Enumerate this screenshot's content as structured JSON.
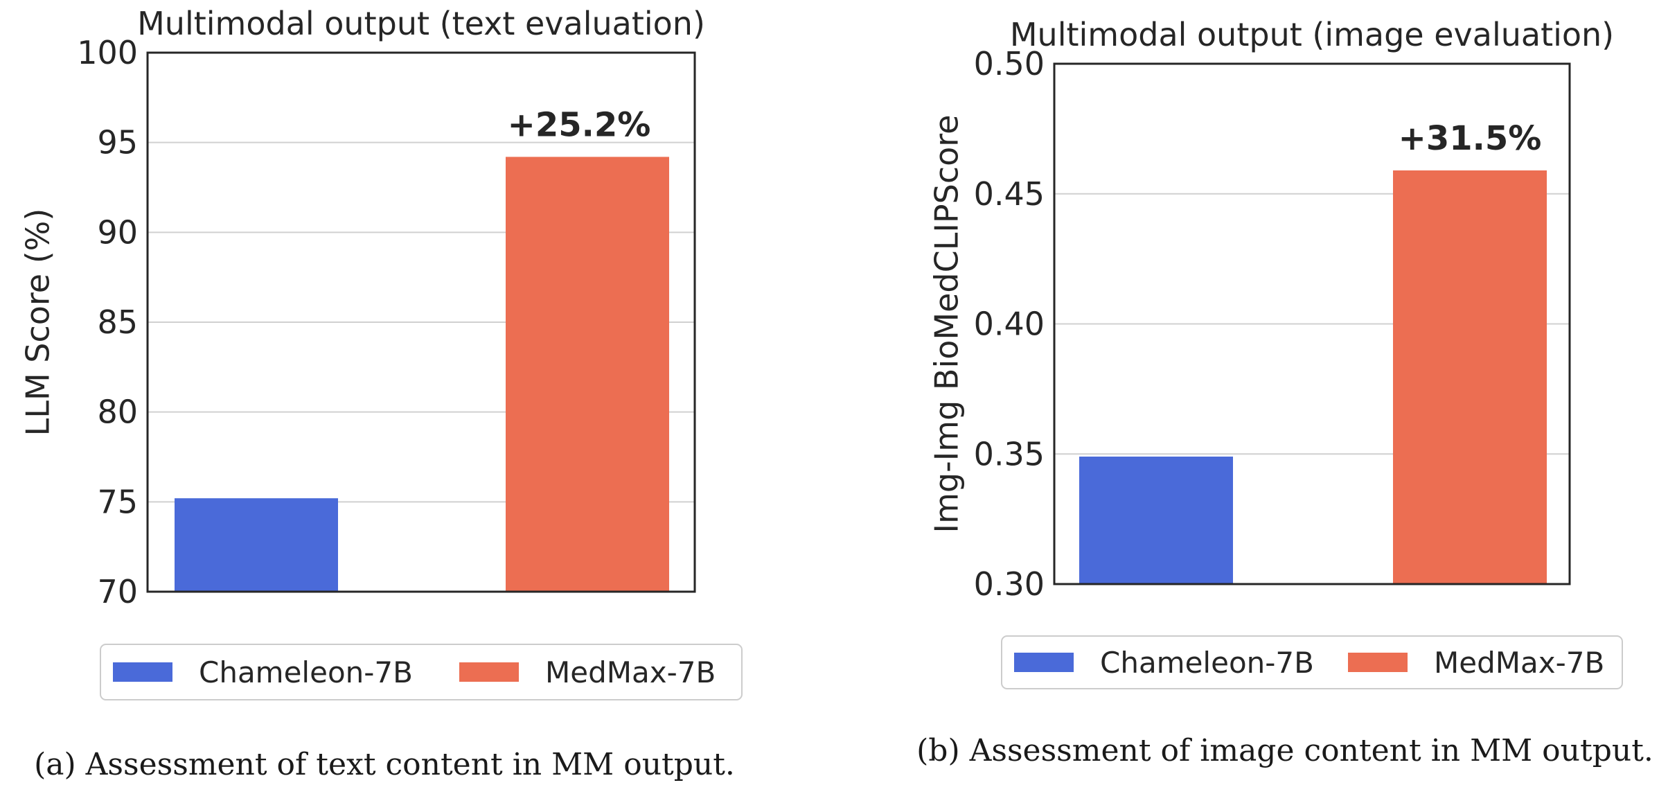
{
  "chart_data": [
    {
      "type": "bar",
      "title": "Multimodal output (text evaluation)",
      "xlabel": "",
      "ylabel": "LLM Score (%)",
      "ylim": [
        70,
        100
      ],
      "yticks": [
        70,
        75,
        80,
        85,
        90,
        95,
        100
      ],
      "ytick_labels": [
        "70",
        "75",
        "80",
        "85",
        "90",
        "95",
        "100"
      ],
      "series": [
        {
          "name": "Chameleon-7B",
          "value": 75.2,
          "color": "#4a6ad9"
        },
        {
          "name": "MedMax-7B",
          "value": 94.2,
          "color": "#ec6e52"
        }
      ],
      "annotation": "+25.2%",
      "grid": true,
      "legend_position": "bottom",
      "caption": "(a) Assessment of text content in MM output."
    },
    {
      "type": "bar",
      "title": "Multimodal output (image evaluation)",
      "xlabel": "",
      "ylabel": "Img-Img BioMedCLIPScore",
      "ylim": [
        0.3,
        0.5
      ],
      "yticks": [
        0.3,
        0.35,
        0.4,
        0.45,
        0.5
      ],
      "ytick_labels": [
        "0.30",
        "0.35",
        "0.40",
        "0.45",
        "0.50"
      ],
      "series": [
        {
          "name": "Chameleon-7B",
          "value": 0.349,
          "color": "#4a6ad9"
        },
        {
          "name": "MedMax-7B",
          "value": 0.459,
          "color": "#ec6e52"
        }
      ],
      "annotation": "+31.5%",
      "grid": true,
      "legend_position": "bottom",
      "caption": "(b) Assessment of image content in MM output."
    }
  ]
}
